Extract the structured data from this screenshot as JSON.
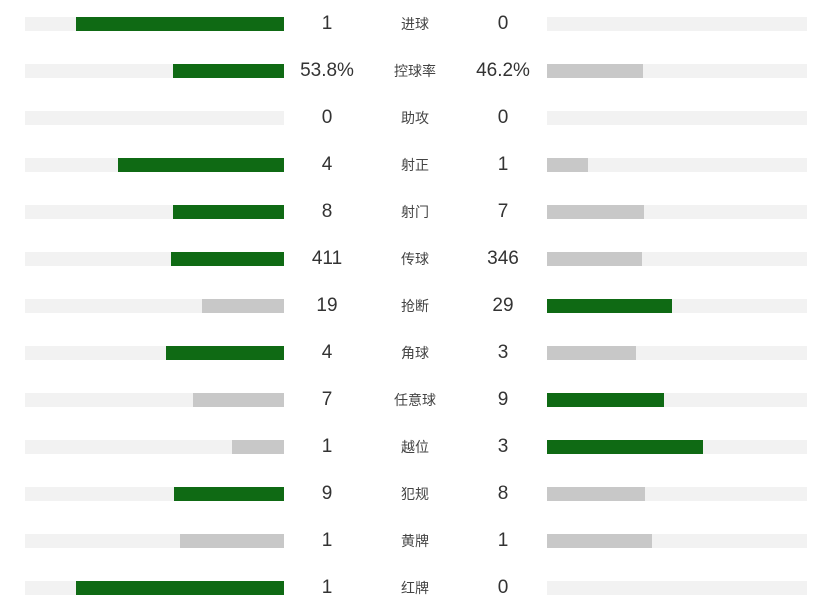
{
  "colors": {
    "win": "#0f6a14",
    "lose": "#c8c8c8",
    "track": "#f2f2f2"
  },
  "stats": [
    {
      "label": "进球",
      "home": "1",
      "away": "0",
      "home_ratio": 0.802,
      "away_ratio": 0.0
    },
    {
      "label": "控球率",
      "home": "53.8%",
      "away": "46.2%",
      "home_ratio": 0.429,
      "away_ratio": 0.369
    },
    {
      "label": "助攻",
      "home": "0",
      "away": "0",
      "home_ratio": 0.0,
      "away_ratio": 0.0
    },
    {
      "label": "射正",
      "home": "4",
      "away": "1",
      "home_ratio": 0.641,
      "away_ratio": 0.158
    },
    {
      "label": "射门",
      "home": "8",
      "away": "7",
      "home_ratio": 0.429,
      "away_ratio": 0.373
    },
    {
      "label": "传球",
      "home": "411",
      "away": "346",
      "home_ratio": 0.436,
      "away_ratio": 0.365
    },
    {
      "label": "抢断",
      "home": "19",
      "away": "29",
      "home_ratio": 0.317,
      "away_ratio": 0.481
    },
    {
      "label": "角球",
      "home": "4",
      "away": "3",
      "home_ratio": 0.456,
      "away_ratio": 0.342
    },
    {
      "label": "任意球",
      "home": "7",
      "away": "9",
      "home_ratio": 0.352,
      "away_ratio": 0.45
    },
    {
      "label": "越位",
      "home": "1",
      "away": "3",
      "home_ratio": 0.201,
      "away_ratio": 0.6
    },
    {
      "label": "犯规",
      "home": "9",
      "away": "8",
      "home_ratio": 0.425,
      "away_ratio": 0.377
    },
    {
      "label": "黄牌",
      "home": "1",
      "away": "1",
      "home_ratio": 0.402,
      "away_ratio": 0.402
    },
    {
      "label": "红牌",
      "home": "1",
      "away": "0",
      "home_ratio": 0.802,
      "away_ratio": 0.0
    }
  ]
}
